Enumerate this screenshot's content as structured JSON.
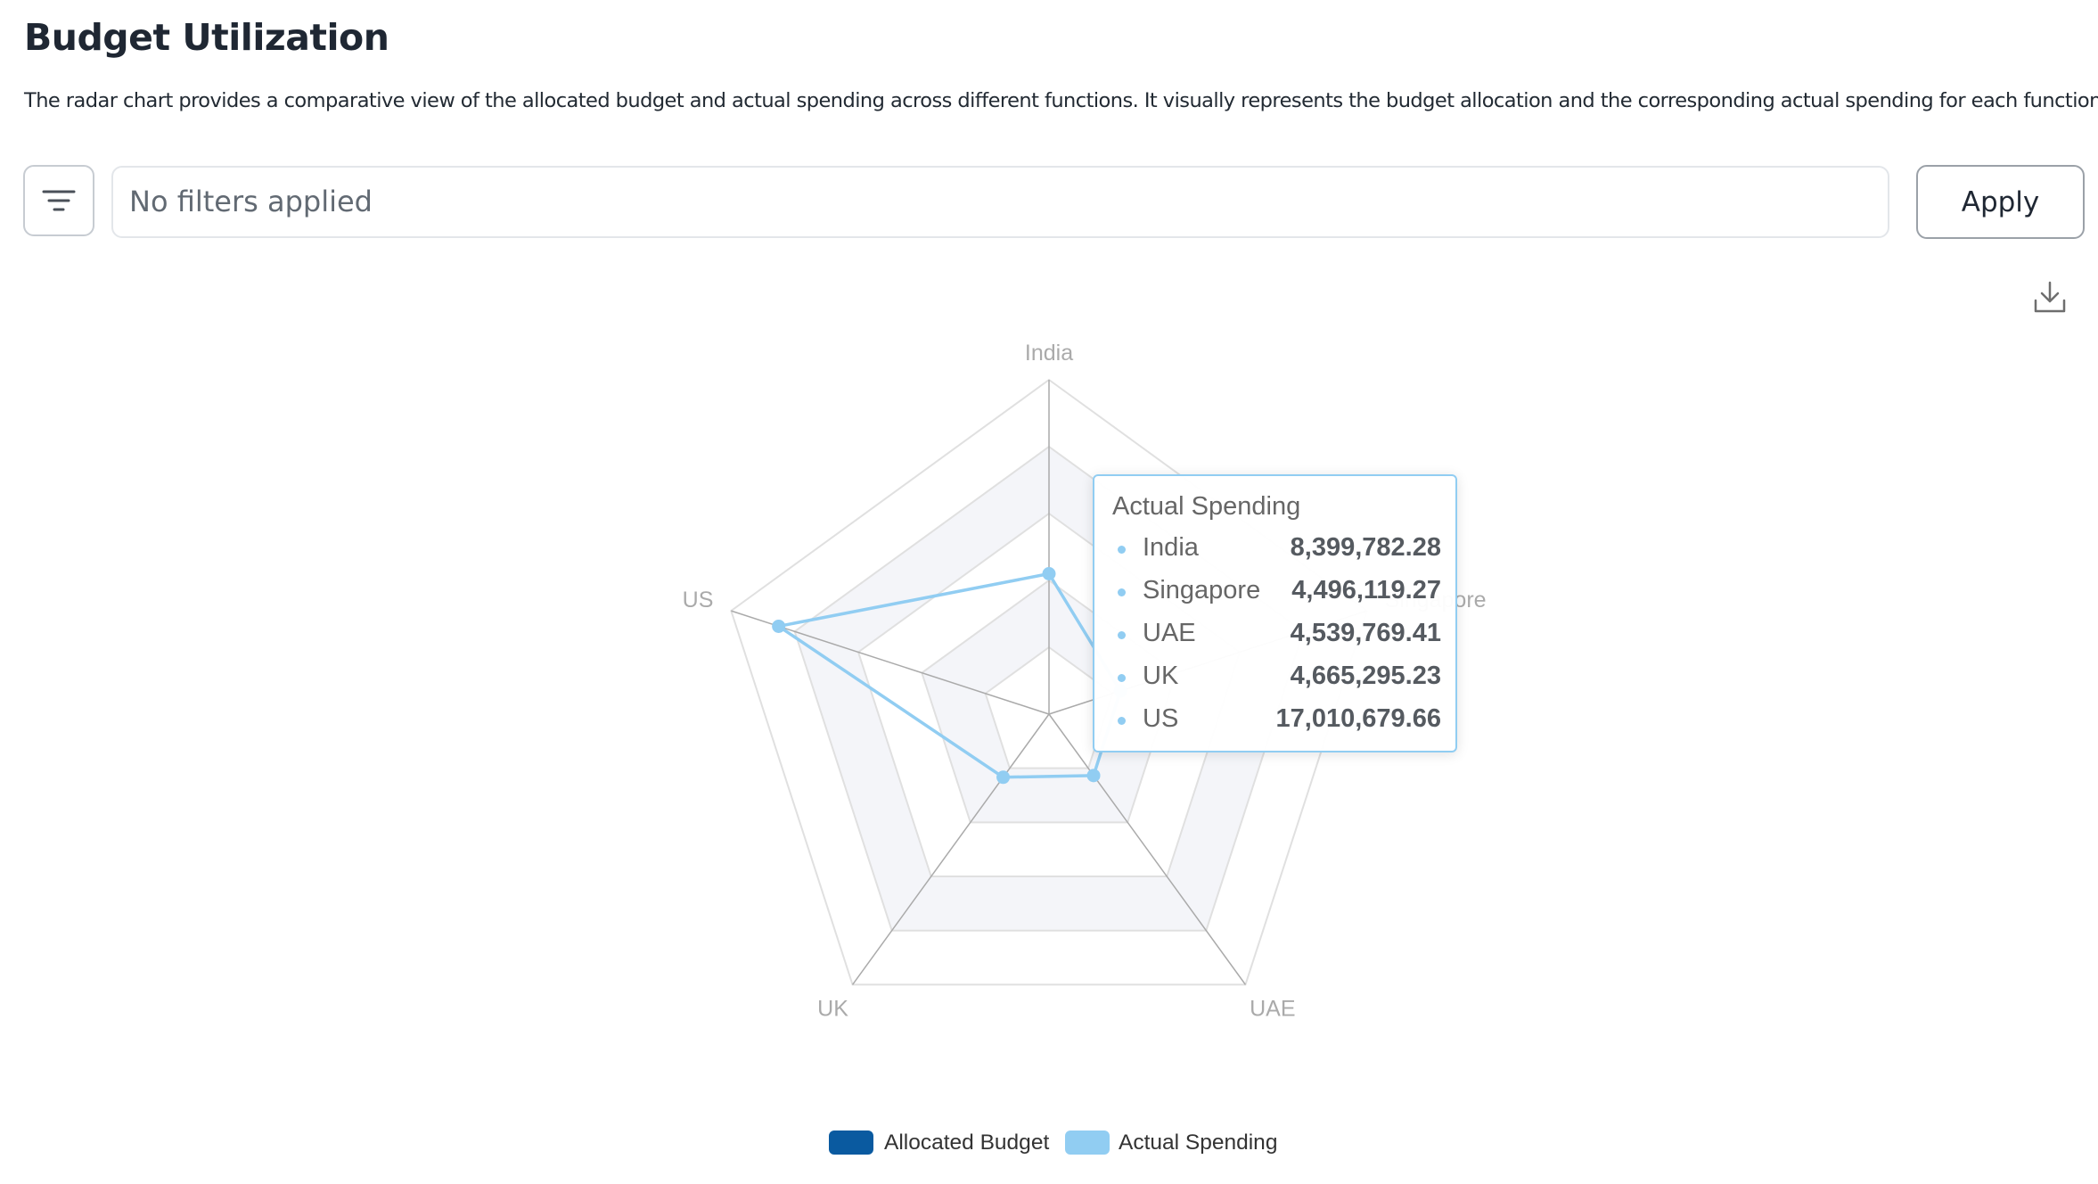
{
  "page": {
    "title": "Budget Utilization",
    "description": "The radar chart provides a comparative view of the allocated budget and actual spending across different functions. It visually represents the budget allocation and the corresponding actual spending for each function."
  },
  "toolbar": {
    "filter_icon": "filter-icon",
    "filter_placeholder": "No filters applied",
    "apply_label": "Apply",
    "download_icon": "download-icon"
  },
  "colors": {
    "allocated": "#0a5aa0",
    "actual": "#91cdf2",
    "grid": "#e0e0e0",
    "axis": "#aaaaaa",
    "split_area_alt": "#f4f5f9"
  },
  "chart_data": {
    "type": "radar",
    "indicators": [
      "India",
      "Singapore",
      "UAE",
      "UK",
      "US"
    ],
    "axis_max": 20000000,
    "split_number": 5,
    "series": [
      {
        "name": "Allocated Budget",
        "values": null
      },
      {
        "name": "Actual Spending",
        "values": [
          8399782.28,
          4496119.27,
          4539769.41,
          4665295.23,
          17010679.66
        ]
      }
    ],
    "legend": {
      "position": "bottom",
      "items": [
        "Allocated Budget",
        "Actual Spending"
      ]
    },
    "tooltip": {
      "title": "Actual Spending",
      "rows": [
        {
          "name": "India",
          "value": "8,399,782.28"
        },
        {
          "name": "Singapore",
          "value": "4,496,119.27"
        },
        {
          "name": "UAE",
          "value": "4,539,769.41"
        },
        {
          "name": "UK",
          "value": "4,665,295.23"
        },
        {
          "name": "US",
          "value": "17,010,679.66"
        }
      ]
    }
  }
}
